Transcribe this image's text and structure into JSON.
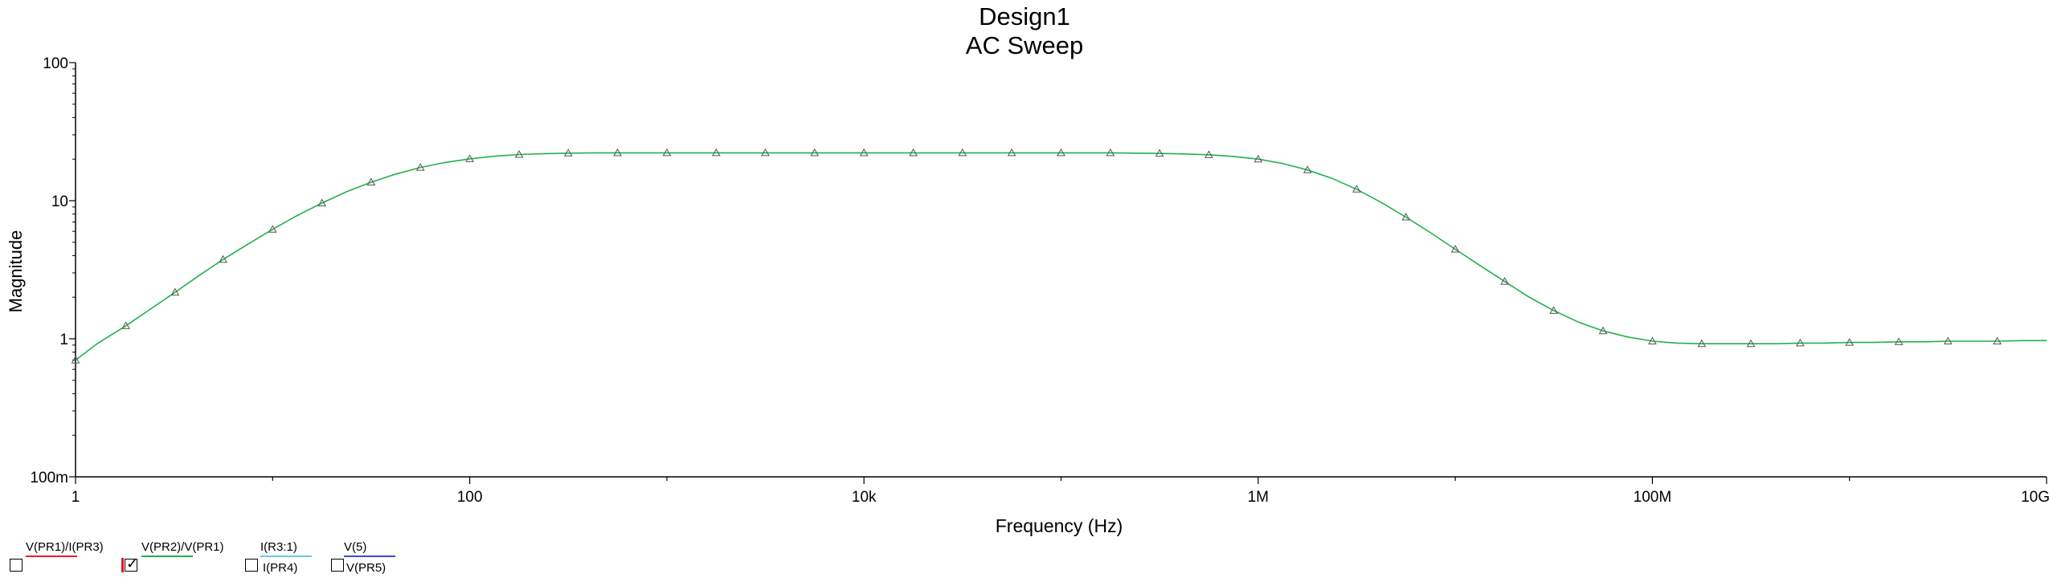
{
  "chart_data": {
    "type": "line",
    "title": "Design1",
    "subtitle": "AC Sweep",
    "xlabel": "Frequency (Hz)",
    "ylabel": "Magnitude",
    "xscale": "log",
    "yscale": "log",
    "xlim": [
      1,
      10000000000
    ],
    "ylim": [
      0.1,
      100
    ],
    "x_ticks": [
      {
        "value": 1,
        "label": "1"
      },
      {
        "value": 100,
        "label": "100"
      },
      {
        "value": 10000,
        "label": "10k"
      },
      {
        "value": 1000000,
        "label": "1M"
      },
      {
        "value": 100000000,
        "label": "100M"
      },
      {
        "value": 10000000000,
        "label": "10G"
      }
    ],
    "y_ticks": [
      {
        "value": 0.1,
        "label": "100m"
      },
      {
        "value": 1,
        "label": "1"
      },
      {
        "value": 10,
        "label": "10"
      },
      {
        "value": 100,
        "label": "100"
      }
    ],
    "grid": false,
    "series": [
      {
        "name": "V(PR2)/V(PR1)",
        "color": "#22b14c",
        "marker": "triangle",
        "x": [
          1,
          1.3,
          1.8,
          2.4,
          3.2,
          4.2,
          5.6,
          7.5,
          10,
          13.3,
          17.8,
          23.7,
          31.6,
          42.2,
          56.2,
          75,
          100,
          133,
          178,
          237,
          316,
          422,
          562,
          750,
          1000,
          1330,
          1780,
          2370,
          3160,
          4220,
          5620,
          7500,
          10000,
          13300,
          17800,
          23700,
          31600,
          42200,
          56200,
          75000,
          100000,
          133000,
          178000,
          237000,
          316000,
          422000,
          562000,
          750000,
          1000000,
          1330000,
          1780000,
          2370000,
          3160000,
          4220000,
          5620000,
          7500000,
          10000000,
          13300000,
          17800000,
          23700000,
          31600000,
          42200000,
          56200000,
          75000000,
          100000000,
          133000000,
          178000000,
          237000000,
          316000000,
          422000000,
          562000000,
          750000000,
          1000000000,
          1330000000,
          1780000000,
          2370000000,
          3160000000,
          4220000000,
          5620000000,
          7500000000,
          10000000000
        ],
        "y": [
          0.7,
          0.93,
          1.24,
          1.64,
          2.17,
          2.85,
          3.75,
          4.85,
          6.2,
          7.8,
          9.6,
          11.6,
          13.6,
          15.6,
          17.4,
          18.9,
          20.1,
          21.0,
          21.6,
          21.9,
          22.1,
          22.2,
          22.2,
          22.2,
          22.2,
          22.2,
          22.2,
          22.2,
          22.2,
          22.2,
          22.2,
          22.2,
          22.2,
          22.2,
          22.2,
          22.2,
          22.2,
          22.2,
          22.2,
          22.2,
          22.2,
          22.2,
          22.2,
          22.1,
          22.0,
          21.8,
          21.5,
          20.9,
          20.0,
          18.6,
          16.7,
          14.5,
          12.1,
          9.7,
          7.6,
          5.85,
          4.45,
          3.4,
          2.6,
          2.0,
          1.6,
          1.32,
          1.14,
          1.03,
          0.96,
          0.93,
          0.92,
          0.92,
          0.92,
          0.92,
          0.93,
          0.93,
          0.94,
          0.94,
          0.95,
          0.95,
          0.96,
          0.96,
          0.96,
          0.97,
          0.97
        ],
        "markers_x": [
          1,
          1.8,
          3.2,
          5.6,
          10,
          17.8,
          31.6,
          56.2,
          100,
          178,
          316,
          562,
          1000,
          1780,
          3160,
          5620,
          10000,
          17800,
          31600,
          56200,
          100000,
          178000,
          316000,
          562000,
          1000000,
          1780000,
          3160000,
          5620000,
          10000000,
          17800000,
          31600000,
          56200000,
          100000000,
          178000000,
          316000000,
          562000000,
          1000000000,
          1780000000,
          3160000000,
          5620000000
        ],
        "markers_y": [
          0.7,
          1.24,
          2.17,
          3.75,
          6.2,
          9.6,
          13.6,
          17.4,
          20.1,
          21.6,
          22.1,
          22.2,
          22.2,
          22.2,
          22.2,
          22.2,
          22.2,
          22.2,
          22.2,
          22.2,
          22.2,
          22.2,
          22.0,
          21.5,
          20.0,
          16.7,
          12.1,
          7.6,
          4.45,
          2.6,
          1.6,
          1.14,
          0.96,
          0.92,
          0.92,
          0.93,
          0.94,
          0.95,
          0.96,
          0.96
        ]
      }
    ]
  },
  "legend": {
    "items": [
      {
        "top": "V(PR1)/I(PR3)",
        "bottom": "",
        "color": "#ed1c24",
        "checked": false,
        "selected": false
      },
      {
        "top": "V(PR2)/V(PR1)",
        "bottom": "",
        "color": "#22b14c",
        "checked": true,
        "selected": true
      },
      {
        "top": "I(R3:1)",
        "bottom": "I(PR4)",
        "color": "#6fc6e8",
        "checked": false,
        "selected": false
      },
      {
        "top": "V(5)",
        "bottom": "V(PR5)",
        "color": "#3f48cc",
        "checked": false,
        "selected": false
      }
    ],
    "checkmark": "✓"
  }
}
